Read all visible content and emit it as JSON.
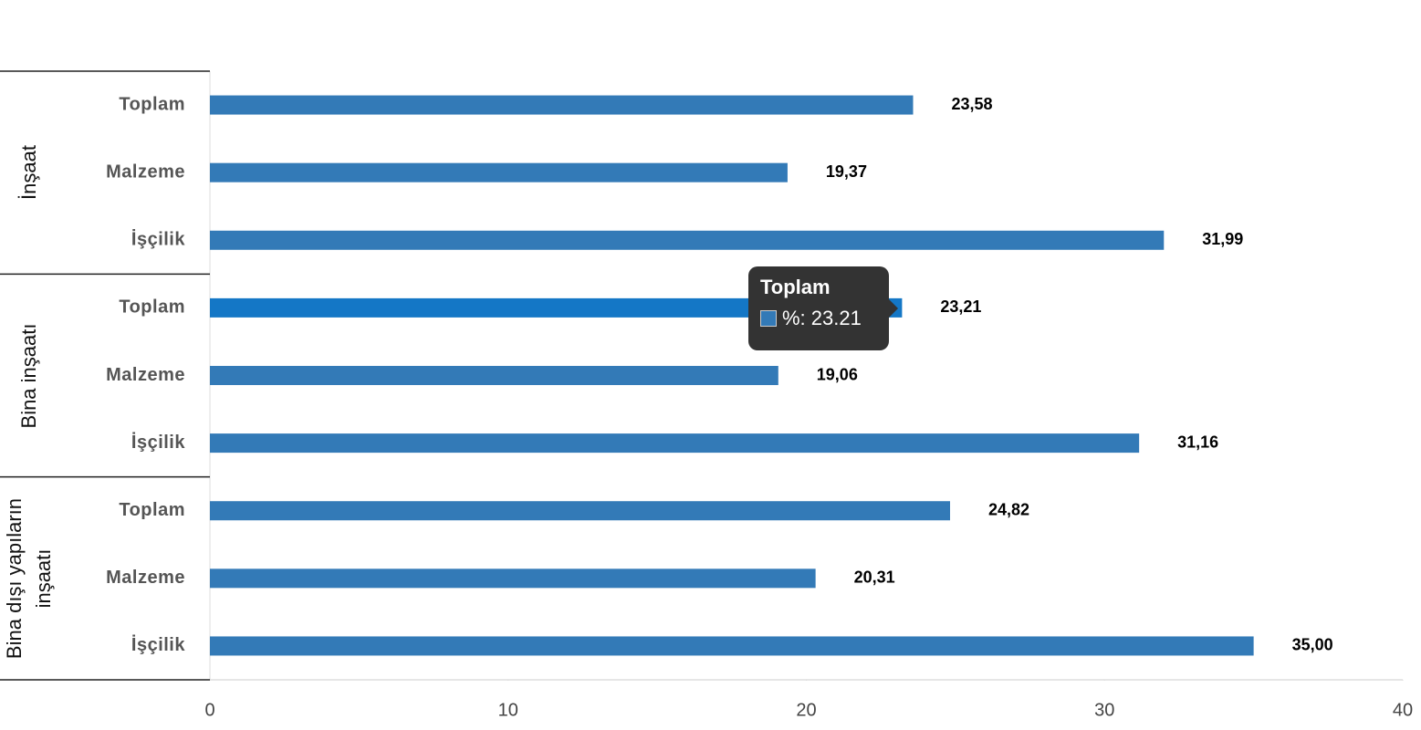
{
  "chart_data": {
    "type": "bar",
    "orientation": "horizontal",
    "color": "#337ab7",
    "highlight": {
      "group": 1,
      "index": 0,
      "color": "#1477c6"
    },
    "groups": [
      {
        "label": "İnşaat",
        "categories": [
          "Toplam",
          "Malzeme",
          "İşçilik"
        ],
        "values": [
          23.58,
          19.37,
          31.99
        ],
        "value_labels": [
          "23,58",
          "19,37",
          "31,99"
        ]
      },
      {
        "label": "Bina inşaatı",
        "categories": [
          "Toplam",
          "Malzeme",
          "İşçilik"
        ],
        "values": [
          23.21,
          19.06,
          31.16
        ],
        "value_labels": [
          "23,21",
          "19,06",
          "31,16"
        ]
      },
      {
        "label": "Bina dışı yapıların inşaatı",
        "categories": [
          "Toplam",
          "Malzeme",
          "İşçilik"
        ],
        "values": [
          24.82,
          20.31,
          35.0
        ],
        "value_labels": [
          "24,82",
          "20,31",
          "35,00"
        ]
      }
    ],
    "xlim": [
      0,
      40
    ],
    "xticks": [
      0,
      10,
      20,
      30,
      40
    ],
    "tooltip": {
      "title": "Toplam",
      "text": "%: 23.21"
    }
  }
}
